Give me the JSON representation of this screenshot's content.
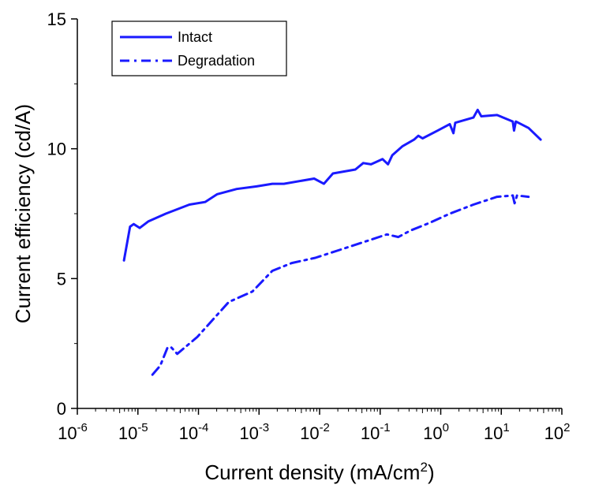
{
  "chart_data": {
    "type": "line",
    "title": "",
    "xlabel": "Current density (mA/cm",
    "xlabel_sup": "2",
    "xlabel_end": ")",
    "ylabel": "Current efficiency (cd/A)",
    "xscale": "log",
    "xlim": [
      1e-06,
      100
    ],
    "ylim": [
      0,
      15
    ],
    "x_tick_exponents": [
      "-6",
      "-5",
      "-4",
      "-3",
      "-2",
      "-1",
      "0",
      "1",
      "2"
    ],
    "x_tick_base": "10",
    "y_ticks": [
      "0",
      "5",
      "10",
      "15"
    ],
    "y_tick_values": [
      0,
      5,
      10,
      15
    ],
    "grid": false,
    "legend_position": "top-left",
    "color": "#1a1aff",
    "series": [
      {
        "name": "Intact",
        "style": "solid",
        "log10_x": [
          -5.23,
          -5.13,
          -5.07,
          -4.97,
          -4.83,
          -4.54,
          -4.15,
          -3.89,
          -3.69,
          -3.37,
          -3.04,
          -2.78,
          -2.59,
          -2.09,
          -1.93,
          -1.78,
          -1.41,
          -1.28,
          -1.15,
          -0.96,
          -0.87,
          -0.8,
          -0.63,
          -0.44,
          -0.37,
          -0.3,
          -0.05,
          0.15,
          0.21,
          0.24,
          0.54,
          0.61,
          0.67,
          0.93,
          1.19,
          1.21,
          1.24,
          1.45,
          1.65
        ],
        "y": [
          5.7,
          7.0,
          7.1,
          6.95,
          7.2,
          7.5,
          7.85,
          7.95,
          8.25,
          8.45,
          8.55,
          8.65,
          8.65,
          8.85,
          8.65,
          9.05,
          9.2,
          9.45,
          9.4,
          9.6,
          9.4,
          9.75,
          10.1,
          10.35,
          10.5,
          10.4,
          10.7,
          10.95,
          10.6,
          11.0,
          11.2,
          11.5,
          11.25,
          11.3,
          11.05,
          10.7,
          11.05,
          10.8,
          10.35
        ]
      },
      {
        "name": "Degradation",
        "style": "dash-dot",
        "log10_x": [
          -4.76,
          -4.63,
          -4.51,
          -4.45,
          -4.35,
          -4.02,
          -3.5,
          -3.11,
          -2.78,
          -2.46,
          -2.07,
          -1.61,
          -1.28,
          -0.89,
          -0.7,
          -0.5,
          -0.18,
          0.15,
          0.54,
          0.93,
          1.19,
          1.22,
          1.26,
          1.45
        ],
        "y": [
          1.3,
          1.65,
          2.35,
          2.35,
          2.1,
          2.75,
          4.1,
          4.5,
          5.3,
          5.6,
          5.8,
          6.15,
          6.4,
          6.7,
          6.6,
          6.85,
          7.15,
          7.5,
          7.85,
          8.15,
          8.2,
          7.9,
          8.2,
          8.15
        ]
      }
    ]
  }
}
